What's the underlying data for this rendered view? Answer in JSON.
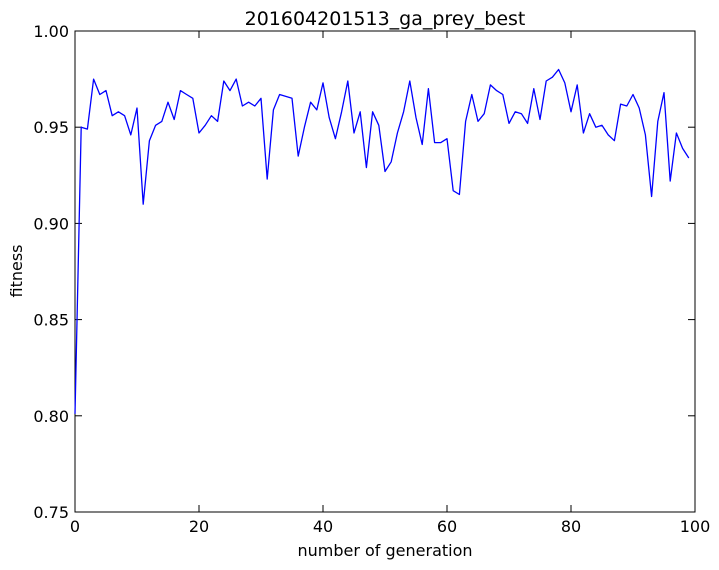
{
  "chart_data": {
    "type": "line",
    "title": "201604201513_ga_prey_best",
    "xlabel": "number of generation",
    "ylabel": "fitness",
    "xlim": [
      0,
      100
    ],
    "ylim": [
      0.75,
      1.0
    ],
    "xticks": [
      0,
      20,
      40,
      60,
      80,
      100
    ],
    "xtick_labels": [
      "0",
      "20",
      "40",
      "60",
      "80",
      "100"
    ],
    "yticks": [
      0.75,
      0.8,
      0.85,
      0.9,
      0.95,
      1.0
    ],
    "ytick_labels": [
      "0.75",
      "0.80",
      "0.85",
      "0.90",
      "0.95",
      "1.00"
    ],
    "grid": false,
    "series": [
      {
        "color": "#0000ff",
        "x": [
          0,
          1,
          2,
          3,
          4,
          5,
          6,
          7,
          8,
          9,
          10,
          11,
          12,
          13,
          14,
          15,
          16,
          17,
          18,
          19,
          20,
          21,
          22,
          23,
          24,
          25,
          26,
          27,
          28,
          29,
          30,
          31,
          32,
          33,
          34,
          35,
          36,
          37,
          38,
          39,
          40,
          41,
          42,
          43,
          44,
          45,
          46,
          47,
          48,
          49,
          50,
          51,
          52,
          53,
          54,
          55,
          56,
          57,
          58,
          59,
          60,
          61,
          62,
          63,
          64,
          65,
          66,
          67,
          68,
          69,
          70,
          71,
          72,
          73,
          74,
          75,
          76,
          77,
          78,
          79,
          80,
          81,
          82,
          83,
          84,
          85,
          86,
          87,
          88,
          89,
          90,
          91,
          92,
          93,
          94,
          95,
          96,
          97,
          98,
          99
        ],
        "y": [
          0.801,
          0.95,
          0.949,
          0.975,
          0.967,
          0.969,
          0.956,
          0.958,
          0.956,
          0.946,
          0.96,
          0.91,
          0.943,
          0.951,
          0.953,
          0.963,
          0.954,
          0.969,
          0.967,
          0.965,
          0.947,
          0.951,
          0.956,
          0.953,
          0.974,
          0.969,
          0.975,
          0.961,
          0.963,
          0.961,
          0.965,
          0.923,
          0.959,
          0.967,
          0.966,
          0.965,
          0.935,
          0.95,
          0.963,
          0.959,
          0.973,
          0.955,
          0.944,
          0.958,
          0.974,
          0.947,
          0.958,
          0.929,
          0.958,
          0.951,
          0.927,
          0.932,
          0.947,
          0.958,
          0.974,
          0.955,
          0.941,
          0.97,
          0.942,
          0.942,
          0.944,
          0.917,
          0.915,
          0.953,
          0.967,
          0.953,
          0.957,
          0.972,
          0.969,
          0.967,
          0.952,
          0.958,
          0.957,
          0.952,
          0.97,
          0.954,
          0.974,
          0.976,
          0.98,
          0.973,
          0.958,
          0.972,
          0.947,
          0.957,
          0.95,
          0.951,
          0.946,
          0.943,
          0.962,
          0.961,
          0.967,
          0.96,
          0.946,
          0.914,
          0.953,
          0.968,
          0.922,
          0.947,
          0.939,
          0.934
        ]
      }
    ]
  }
}
